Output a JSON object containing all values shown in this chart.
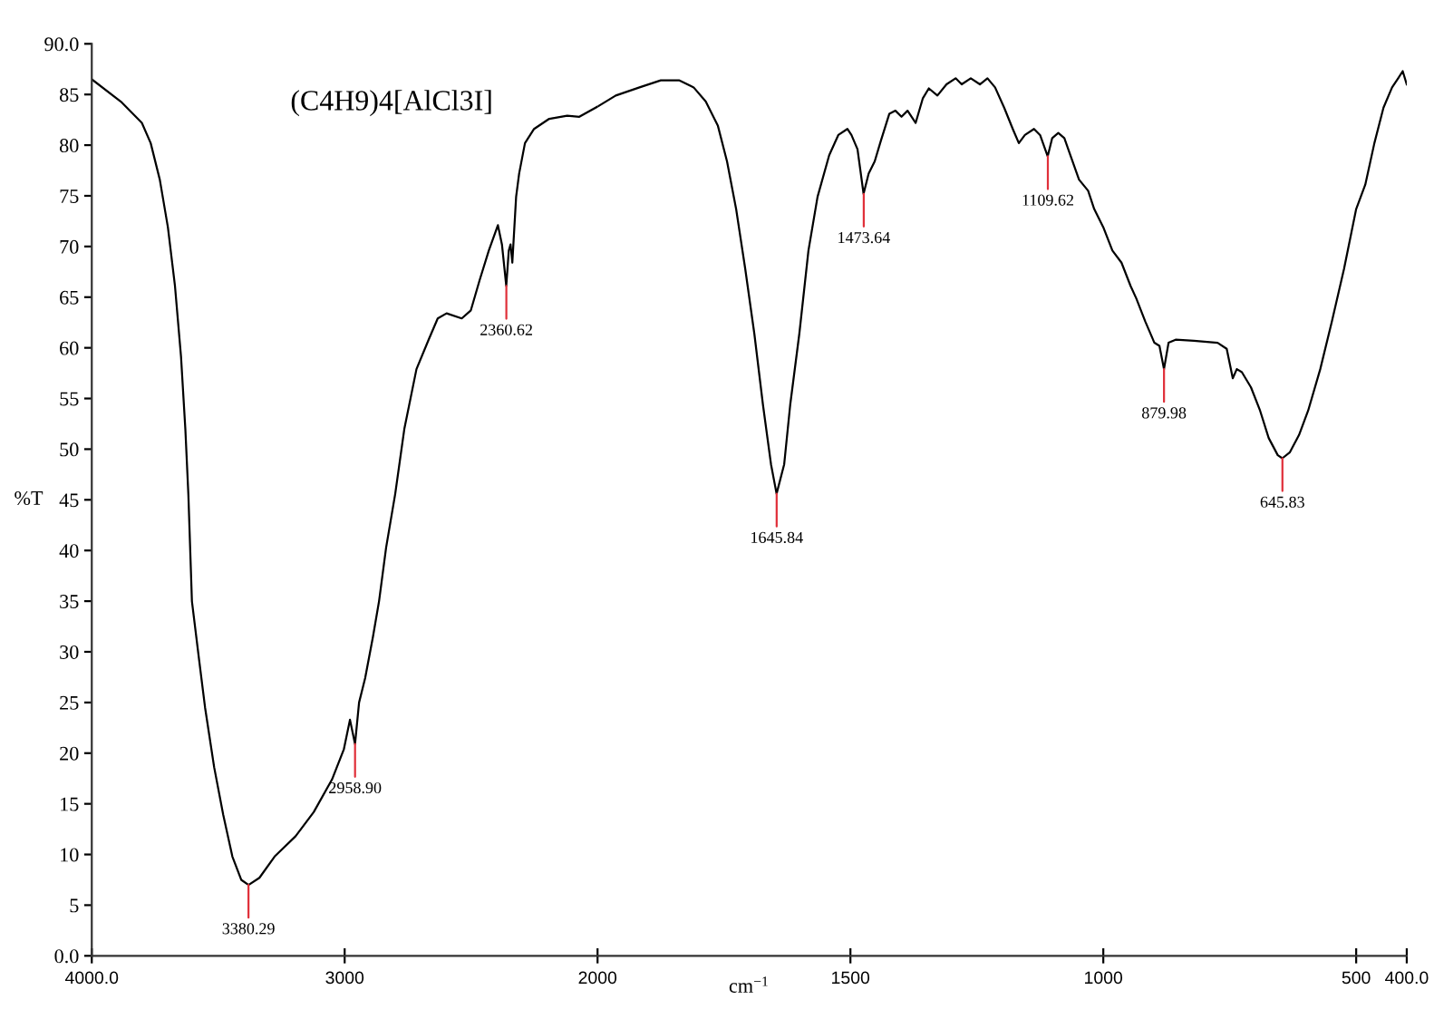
{
  "chart_data": [
    {
      "type": "line",
      "title": "(C4H9)4[AlCl3I]",
      "ylabel": "%T",
      "x": [
        4000,
        3885,
        3802,
        3767,
        3731,
        3699,
        3671,
        3647,
        3630,
        3618,
        3604,
        3575,
        3552,
        3516,
        3480,
        3444,
        3409,
        3380,
        3337,
        3277,
        3194,
        3122,
        3050,
        3003,
        2979,
        2959,
        2943,
        2919,
        2888,
        2864,
        2836,
        2800,
        2764,
        2716,
        2668,
        2632,
        2597,
        2537,
        2501,
        2466,
        2430,
        2394,
        2378,
        2361,
        2351,
        2344,
        2337,
        2322,
        2310,
        2287,
        2251,
        2191,
        2120,
        2072,
        2000
      ],
      "series": [
        {
          "color": "#000000",
          "values": [
            86.5,
            84.3,
            82.2,
            80.2,
            76.6,
            71.9,
            66.1,
            59.1,
            52.0,
            45.5,
            35.0,
            29.1,
            24.5,
            18.6,
            13.9,
            9.8,
            7.5,
            7.0,
            7.7,
            9.8,
            11.8,
            14.2,
            17.4,
            20.4,
            23.3,
            20.9,
            25.0,
            27.4,
            31.5,
            35.0,
            40.3,
            45.6,
            52.0,
            57.9,
            60.8,
            62.9,
            63.4,
            62.9,
            63.7,
            66.7,
            69.6,
            72.1,
            70.2,
            66.1,
            69.6,
            70.2,
            68.4,
            74.9,
            77.2,
            80.2,
            81.6,
            82.6,
            82.9,
            82.8,
            83.8
          ]
        }
      ],
      "xlim": [
        4000,
        2000
      ],
      "xticks": [
        {
          "value": 4000,
          "label": "4000.0"
        },
        3000,
        2000
      ],
      "ylim": [
        0,
        90
      ],
      "yticks": [
        {
          "value": 0,
          "label": "0.0"
        },
        5,
        10,
        15,
        20,
        25,
        30,
        35,
        40,
        45,
        50,
        55,
        60,
        65,
        70,
        75,
        80,
        85,
        {
          "value": 90,
          "label": "90.0"
        }
      ],
      "annotations": [
        {
          "text": "3380.29",
          "x": 3380.29,
          "y": 7.0
        },
        {
          "text": "2958.90",
          "x": 2958.9,
          "y": 20.9
        },
        {
          "text": "2360.62",
          "x": 2360.62,
          "y": 66.1
        }
      ],
      "line_style": "solid"
    },
    {
      "type": "line",
      "xlabel": "cm$^{−1}$",
      "x": [
        2000,
        1964,
        1917,
        1875,
        1839,
        1810,
        1786,
        1762,
        1744,
        1726,
        1708,
        1690,
        1673,
        1657,
        1646,
        1631,
        1619,
        1601,
        1583,
        1565,
        1542,
        1524,
        1506,
        1498,
        1486,
        1474,
        1464,
        1452,
        1440,
        1423,
        1411,
        1399,
        1387,
        1371,
        1357,
        1345,
        1328,
        1310,
        1292,
        1280,
        1262,
        1244,
        1229,
        1214,
        1196,
        1179,
        1167,
        1155,
        1137,
        1125,
        1110,
        1101,
        1089,
        1077,
        1065,
        1048,
        1030,
        1018,
        1000,
        982,
        964,
        946,
        935,
        917,
        899,
        889,
        880,
        871,
        857,
        821,
        774,
        756,
        744,
        736,
        726,
        708,
        690,
        673,
        655,
        646,
        631,
        613,
        595,
        571,
        548,
        524,
        500,
        482,
        464,
        446,
        429,
        417,
        408,
        400
      ],
      "series": [
        {
          "color": "#000000",
          "values": [
            83.8,
            84.9,
            85.7,
            86.4,
            86.4,
            85.7,
            84.3,
            81.9,
            78.4,
            73.7,
            67.8,
            61.4,
            54.4,
            48.5,
            45.6,
            48.5,
            54.4,
            61.4,
            69.6,
            74.9,
            79.0,
            81.0,
            81.6,
            81.0,
            79.6,
            75.2,
            77.2,
            78.4,
            80.4,
            83.1,
            83.4,
            82.8,
            83.4,
            82.2,
            84.6,
            85.6,
            84.9,
            86.0,
            86.6,
            86.0,
            86.6,
            86.0,
            86.6,
            85.7,
            83.7,
            81.6,
            80.2,
            81.0,
            81.6,
            81.0,
            78.9,
            80.7,
            81.2,
            80.7,
            79.0,
            76.6,
            75.5,
            73.7,
            71.9,
            69.6,
            68.4,
            66.1,
            64.9,
            62.6,
            60.5,
            60.2,
            57.9,
            60.5,
            60.8,
            60.7,
            60.5,
            59.9,
            57.0,
            57.9,
            57.6,
            56.1,
            53.8,
            51.1,
            49.4,
            49.1,
            49.7,
            51.4,
            53.8,
            57.9,
            62.6,
            67.8,
            73.7,
            76.1,
            80.2,
            83.7,
            85.7,
            86.6,
            87.3,
            86.0
          ]
        }
      ],
      "xlim": [
        2000,
        400
      ],
      "xticks": [
        1500,
        1000,
        500,
        {
          "value": 400,
          "label": "400.0"
        }
      ],
      "ylim": [
        0,
        90
      ],
      "tick_labels": "x",
      "annotations": [
        {
          "text": "1645.84",
          "x": 1645.84,
          "y": 45.6
        },
        {
          "text": "1473.64",
          "x": 1473.64,
          "y": 75.2
        },
        {
          "text": "1109.62",
          "x": 1109.62,
          "y": 78.9
        },
        {
          "text": "879.98",
          "x": 879.98,
          "y": 57.9
        },
        {
          "text": "645.83",
          "x": 645.83,
          "y": 49.1
        }
      ],
      "line_style": "solid"
    }
  ]
}
